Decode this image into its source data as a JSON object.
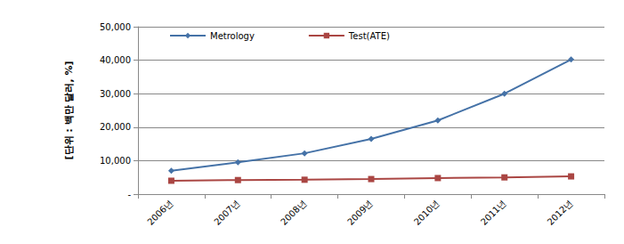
{
  "chart_data": {
    "type": "line",
    "y_label": "[단위 : 백만 달러, %]",
    "categories": [
      "2006년",
      "2007년",
      "2008년",
      "2009년",
      "2010년",
      "2011년",
      "2012년"
    ],
    "series": [
      {
        "name": "Metrology",
        "color": "#4572a7",
        "marker": "diamond",
        "values": [
          7000,
          9500,
          12200,
          16500,
          22000,
          30000,
          40200
        ]
      },
      {
        "name": "Test(ATE)",
        "color": "#aa4643",
        "marker": "square",
        "values": [
          4000,
          4200,
          4300,
          4500,
          4800,
          5000,
          5300
        ]
      }
    ],
    "ylim": [
      0,
      50000
    ],
    "yticks": [
      {
        "value": 0,
        "label": "-"
      },
      {
        "value": 10000,
        "label": "10,000"
      },
      {
        "value": 20000,
        "label": "20,000"
      },
      {
        "value": 30000,
        "label": "30,000"
      },
      {
        "value": 40000,
        "label": "40,000"
      },
      {
        "value": 50000,
        "label": "50,000"
      }
    ],
    "grid": true,
    "legend": "top"
  }
}
